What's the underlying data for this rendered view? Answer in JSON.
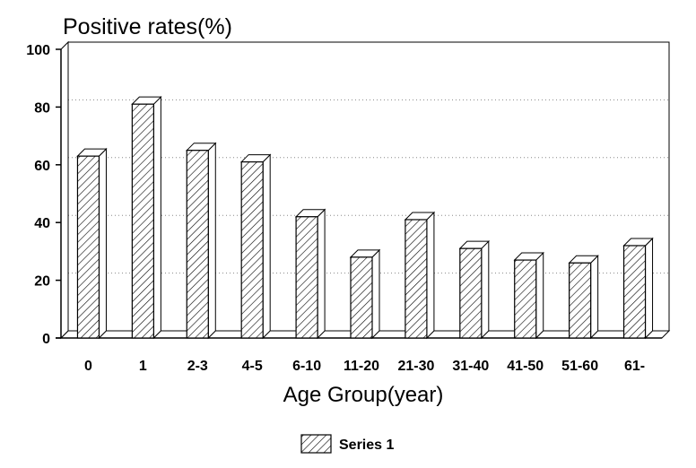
{
  "chart_data": {
    "type": "bar",
    "style": "3d-hatched",
    "ylabel": "Positive rates(%)",
    "xlabel": "Age Group(year)",
    "categories": [
      "0",
      "1",
      "2-3",
      "4-5",
      "6-10",
      "11-20",
      "21-30",
      "31-40",
      "41-50",
      "51-60",
      "61-"
    ],
    "series": [
      {
        "name": "Series 1",
        "values": [
          63,
          81,
          65,
          61,
          42,
          28,
          41,
          31,
          27,
          26,
          32
        ]
      }
    ],
    "ylim": [
      0,
      100
    ],
    "yticks": [
      0,
      20,
      40,
      60,
      80,
      100
    ],
    "grid": "horizontal-dotted",
    "legend": "bottom-center",
    "colors": {
      "bar_face": "#ffffff",
      "hatch": "#000000",
      "grid": "#888888"
    }
  }
}
